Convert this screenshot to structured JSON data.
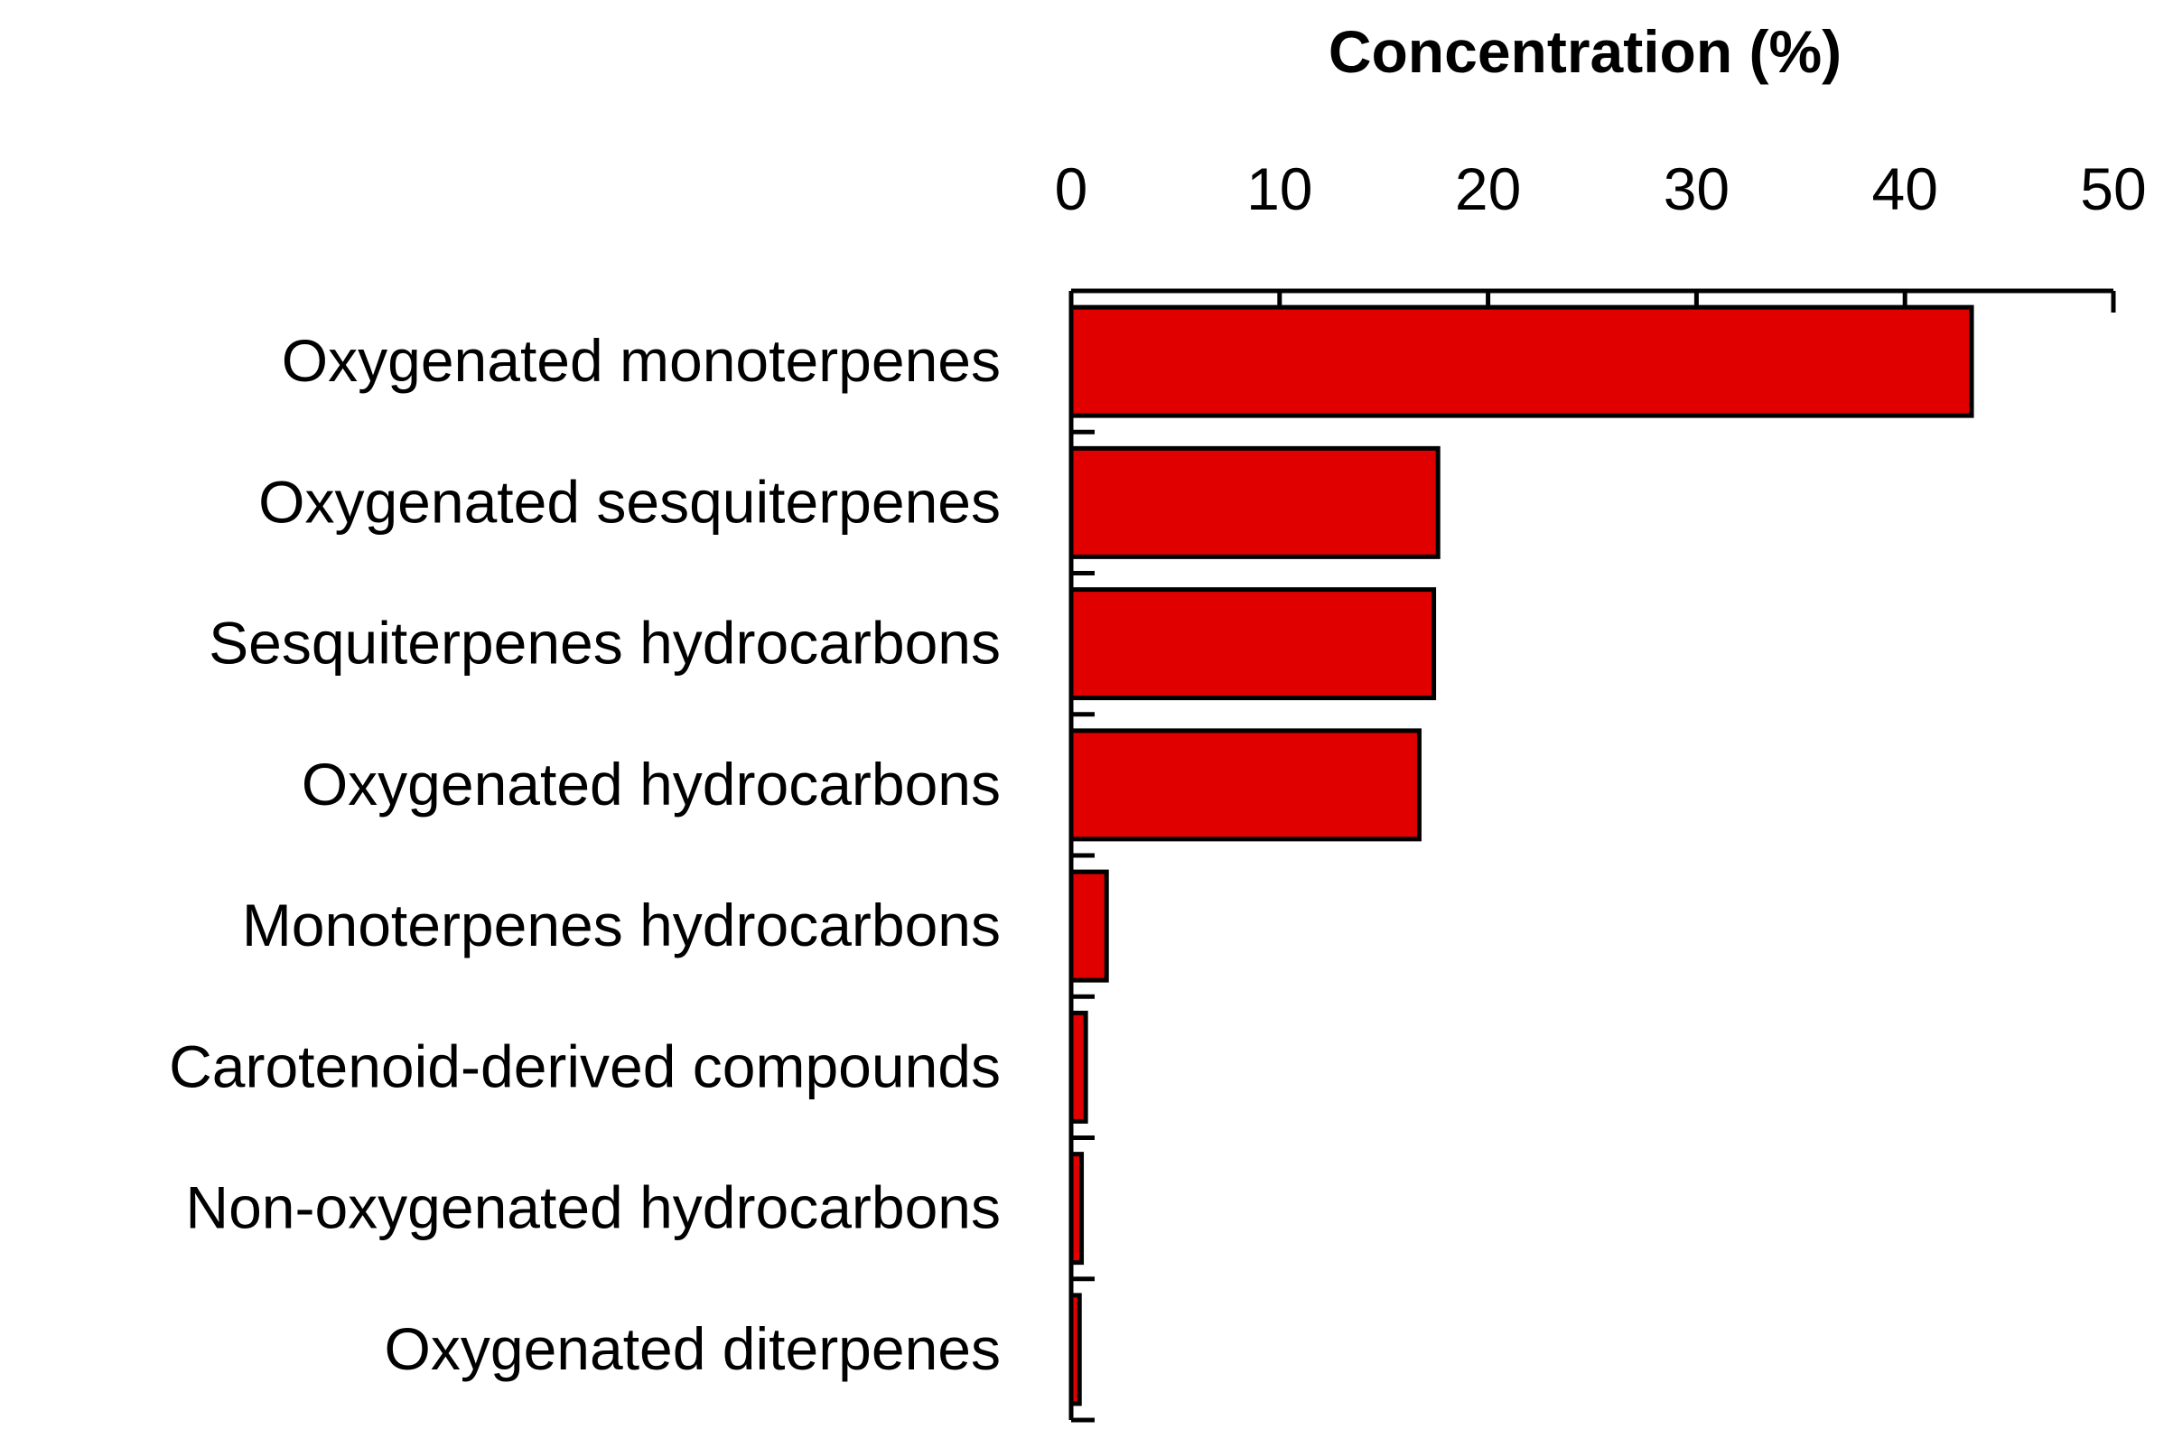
{
  "chart_data": {
    "type": "bar",
    "orientation": "horizontal",
    "title": "",
    "xlabel": "Concentration (%)",
    "ylabel": "",
    "xlim": [
      0,
      50
    ],
    "xticks": [
      0,
      10,
      20,
      30,
      40,
      50
    ],
    "x_axis_position": "top",
    "grid": false,
    "bar_color": "#e00000",
    "categories": [
      "Oxygenated monoterpenes",
      "Oxygenated sesquiterpenes",
      "Sesquiterpenes hydrocarbons",
      "Oxygenated hydrocarbons",
      "Monoterpenes hydrocarbons",
      "Carotenoid-derived compounds",
      "Non-oxygenated hydrocarbons",
      "Oxygenated diterpenes"
    ],
    "values": [
      43.2,
      17.6,
      17.4,
      16.7,
      1.7,
      0.7,
      0.5,
      0.4
    ]
  }
}
